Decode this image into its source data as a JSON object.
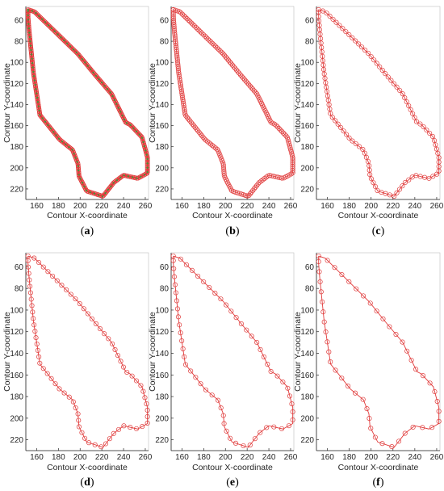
{
  "figure": {
    "captions": [
      "(a)",
      "(b)",
      "(c)",
      "(d)",
      "(e)",
      "(f)"
    ]
  },
  "chart_data": [
    {
      "type": "line",
      "panel": "(a)",
      "xlabel": "Contour X-coordinate",
      "ylabel": "Contour Y-coordinate",
      "xlim": [
        150,
        263
      ],
      "ylim": [
        230,
        47
      ],
      "y_direction": "reversed",
      "xticks": [
        160,
        180,
        200,
        220,
        240,
        260
      ],
      "yticks": [
        60,
        80,
        100,
        120,
        140,
        160,
        180,
        200,
        220
      ],
      "grid": false,
      "line_color": "#e03a3a",
      "marker": "circle",
      "point_density": "dense",
      "inner_fill_marks": "#3a9a3a",
      "contour": {
        "x": [
          152,
          158,
          176,
          198,
          214,
          229,
          242,
          246,
          257,
          262,
          262,
          253,
          240,
          231,
          221,
          206,
          199,
          198,
          193,
          181,
          163,
          157,
          153,
          152,
          152
        ],
        "y": [
          50,
          52,
          70,
          92,
          112,
          130,
          157,
          159,
          171,
          190,
          205,
          210,
          207,
          214,
          227,
          222,
          208,
          196,
          183,
          173,
          150,
          110,
          70,
          57,
          50
        ]
      }
    },
    {
      "type": "line",
      "panel": "(b)",
      "xlabel": "Contour X-coordinate",
      "ylabel": "Contour Y-coordinate",
      "xlim": [
        150,
        263
      ],
      "ylim": [
        230,
        47
      ],
      "y_direction": "reversed",
      "xticks": [
        160,
        180,
        200,
        220,
        240,
        260
      ],
      "yticks": [
        60,
        80,
        100,
        120,
        140,
        160,
        180,
        200,
        220
      ],
      "grid": false,
      "line_color": "#e03a3a",
      "marker": "circle",
      "point_density": "high",
      "contour": {
        "x": [
          152,
          158,
          176,
          198,
          214,
          229,
          242,
          246,
          257,
          262,
          262,
          253,
          240,
          231,
          221,
          206,
          199,
          198,
          193,
          181,
          163,
          157,
          153,
          152,
          152
        ],
        "y": [
          50,
          52,
          70,
          92,
          112,
          130,
          157,
          159,
          171,
          190,
          205,
          210,
          207,
          214,
          227,
          222,
          208,
          196,
          183,
          173,
          150,
          110,
          70,
          57,
          50
        ]
      }
    },
    {
      "type": "line",
      "panel": "(c)",
      "xlabel": "Contour X-coordinate",
      "ylabel": "Contour Y-coordinate",
      "xlim": [
        150,
        263
      ],
      "ylim": [
        230,
        47
      ],
      "y_direction": "reversed",
      "xticks": [
        160,
        180,
        200,
        220,
        240,
        260
      ],
      "yticks": [
        60,
        80,
        100,
        120,
        140,
        160,
        180,
        200,
        220
      ],
      "grid": false,
      "line_color": "#e03a3a",
      "marker": "circle",
      "point_density": "medium",
      "contour": {
        "x": [
          152,
          158,
          176,
          198,
          214,
          229,
          242,
          246,
          257,
          262,
          262,
          253,
          240,
          231,
          221,
          206,
          199,
          198,
          193,
          181,
          163,
          157,
          153,
          152,
          152
        ],
        "y": [
          50,
          52,
          70,
          92,
          112,
          130,
          157,
          159,
          171,
          190,
          205,
          210,
          207,
          214,
          227,
          222,
          208,
          196,
          183,
          173,
          150,
          110,
          70,
          57,
          50
        ]
      }
    },
    {
      "type": "line",
      "panel": "(d)",
      "xlabel": "Contour X-coordinate",
      "ylabel": "Contour Y-coordinate",
      "xlim": [
        150,
        263
      ],
      "ylim": [
        230,
        47
      ],
      "y_direction": "reversed",
      "xticks": [
        160,
        180,
        200,
        220,
        240,
        260
      ],
      "yticks": [
        60,
        80,
        100,
        120,
        140,
        160,
        180,
        200,
        220
      ],
      "grid": false,
      "line_color": "#e03a3a",
      "marker": "circle",
      "point_density": "low",
      "contour": {
        "x": [
          152,
          158,
          176,
          198,
          214,
          229,
          242,
          246,
          257,
          262,
          262,
          253,
          240,
          231,
          221,
          206,
          199,
          198,
          193,
          181,
          163,
          157,
          153,
          152,
          152
        ],
        "y": [
          50,
          52,
          70,
          92,
          112,
          130,
          157,
          159,
          171,
          190,
          205,
          210,
          207,
          214,
          227,
          222,
          208,
          196,
          183,
          173,
          150,
          110,
          70,
          57,
          50
        ]
      }
    },
    {
      "type": "line",
      "panel": "(e)",
      "xlabel": "Contour X-coordinate",
      "ylabel": "Contour Y-coordinate",
      "xlim": [
        150,
        263
      ],
      "ylim": [
        230,
        47
      ],
      "y_direction": "reversed",
      "xticks": [
        160,
        180,
        200,
        220,
        240,
        260
      ],
      "yticks": [
        60,
        80,
        100,
        120,
        140,
        160,
        180,
        200,
        220
      ],
      "grid": false,
      "line_color": "#e03a3a",
      "marker": "circle",
      "point_density": "lower",
      "contour": {
        "x": [
          152,
          158,
          176,
          198,
          214,
          229,
          242,
          246,
          257,
          262,
          262,
          253,
          240,
          231,
          221,
          206,
          199,
          198,
          193,
          181,
          163,
          157,
          153,
          152,
          152
        ],
        "y": [
          50,
          52,
          70,
          92,
          112,
          130,
          157,
          159,
          171,
          190,
          205,
          210,
          207,
          214,
          227,
          222,
          208,
          196,
          183,
          173,
          150,
          110,
          70,
          57,
          50
        ]
      }
    },
    {
      "type": "line",
      "panel": "(f)",
      "xlabel": "Contour X-coordinate",
      "ylabel": "Contour Y-coordinate",
      "xlim": [
        150,
        263
      ],
      "ylim": [
        230,
        47
      ],
      "y_direction": "reversed",
      "xticks": [
        160,
        180,
        200,
        220,
        240,
        260
      ],
      "yticks": [
        60,
        80,
        100,
        120,
        140,
        160,
        180,
        200,
        220
      ],
      "grid": false,
      "line_color": "#e03a3a",
      "marker": "circle",
      "point_density": "lowest",
      "contour": {
        "x": [
          152,
          158,
          176,
          198,
          214,
          229,
          242,
          246,
          257,
          262,
          262,
          253,
          240,
          231,
          221,
          206,
          199,
          198,
          193,
          181,
          163,
          157,
          153,
          152,
          152
        ],
        "y": [
          50,
          52,
          70,
          92,
          112,
          130,
          157,
          159,
          171,
          190,
          205,
          210,
          207,
          214,
          227,
          222,
          208,
          196,
          183,
          173,
          150,
          110,
          70,
          57,
          50
        ]
      }
    }
  ]
}
